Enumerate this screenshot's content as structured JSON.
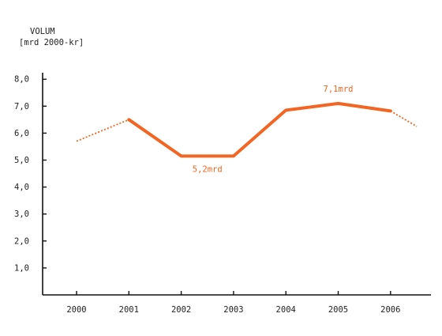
{
  "chart_data": {
    "type": "line",
    "title": "",
    "ylabel": [
      "VOLUM",
      "[mrd 2000-kr]"
    ],
    "xlabel": "",
    "categories": [
      "2000",
      "2001",
      "2002",
      "2003",
      "2004",
      "2005",
      "2006"
    ],
    "ytick_labels": [
      "1,0",
      "2,0",
      "3,0",
      "4,0",
      "5,0",
      "6,0",
      "7,0",
      "8,0"
    ],
    "ylim": [
      0,
      9.0
    ],
    "series": [
      {
        "color": "#f26522",
        "solid": [
          {
            "x": "2001",
            "y": 6.5
          },
          {
            "x": "2002",
            "y": 5.15
          },
          {
            "x": "2003",
            "y": 5.15
          },
          {
            "x": "2004",
            "y": 6.85
          },
          {
            "x": "2005",
            "y": 7.1
          },
          {
            "x": "2006",
            "y": 6.82
          }
        ],
        "dotted_start": [
          {
            "x": "2000",
            "y": 5.7
          },
          {
            "x": "2001",
            "y": 6.5
          }
        ],
        "dotted_end": [
          {
            "x": "2006",
            "y": 6.82
          },
          {
            "x": "2006.5",
            "y": 6.25
          }
        ]
      }
    ],
    "annotations": [
      {
        "text": "5,2mrd",
        "x": "2002.5",
        "y": 5.15,
        "position": "below"
      },
      {
        "text": "7,1mrd",
        "x": "2005",
        "y": 7.1,
        "position": "above"
      }
    ],
    "grid": false,
    "legend": "none"
  }
}
